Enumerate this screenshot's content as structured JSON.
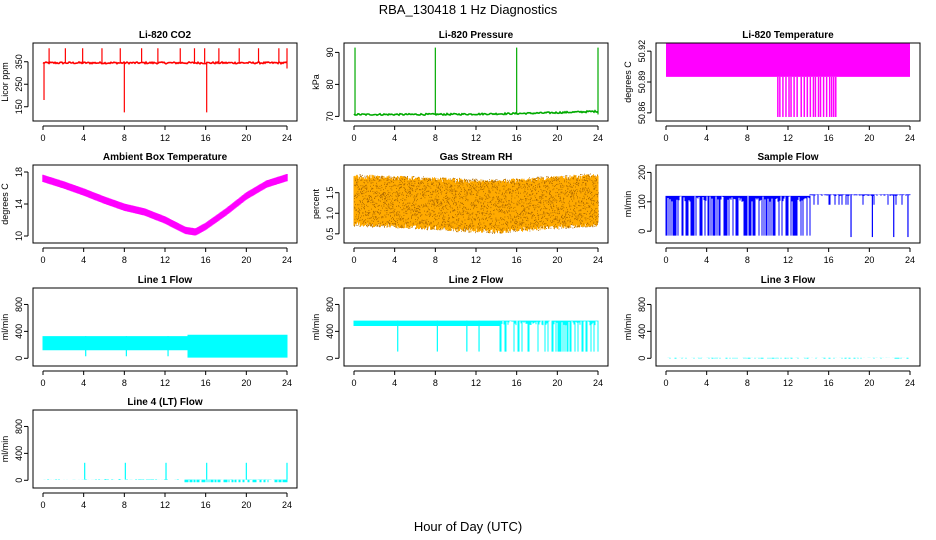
{
  "figure": {
    "title": "RBA_130418  1 Hz Diagnostics",
    "xlabel": "Hour of Day (UTC)"
  },
  "chart_data": [
    {
      "type": "line",
      "title": "Li-820 CO2",
      "ylabel": "Licor ppm",
      "xlim": [
        0,
        24
      ],
      "ylim": [
        100,
        420
      ],
      "xticks": [
        "0",
        "4",
        "8",
        "12",
        "16",
        "20",
        "24"
      ],
      "yticks": [
        {
          "v": 150,
          "label": "150"
        },
        {
          "v": 250,
          "label": "250"
        },
        {
          "v": 350,
          "label": "350"
        }
      ],
      "color": "#ff0000",
      "series": [
        {
          "name": "CO2",
          "baseline": 345,
          "noise": 4,
          "band": 0,
          "spikes_up": [
            0.6,
            2.2,
            3.9,
            5.8,
            7.6,
            9.7,
            11.3,
            13.5,
            14.9,
            15.9,
            17.3,
            19.3,
            21.2,
            23.2,
            24
          ],
          "spike_up_value": 410,
          "spikes_down": [
            {
              "x": 0.1,
              "y": 180
            },
            {
              "x": 8.0,
              "y": 125
            },
            {
              "x": 16.1,
              "y": 125
            },
            {
              "x": 24,
              "y": 320
            }
          ]
        }
      ]
    },
    {
      "type": "line",
      "title": "Li-820 Pressure",
      "ylabel": "kPa",
      "xlim": [
        0,
        24
      ],
      "ylim": [
        69.5,
        92
      ],
      "xticks": [
        "0",
        "4",
        "8",
        "12",
        "16",
        "20",
        "24"
      ],
      "yticks": [
        {
          "v": 70,
          "label": "70"
        },
        {
          "v": 80,
          "label": "80"
        },
        {
          "v": 90,
          "label": "90"
        }
      ],
      "color": "#00aa00",
      "series": [
        {
          "name": "Pressure",
          "baseline": 70.6,
          "baseline_end": 71.6,
          "noise": 0.25,
          "band": 0,
          "spikes_up": [
            0.1,
            8.0,
            16.0,
            24.0
          ],
          "spike_up_value": 91.5,
          "spikes_down": []
        }
      ]
    },
    {
      "type": "area",
      "title": "Li-820 Temperature",
      "ylabel": "degrees C",
      "xlim": [
        0,
        24
      ],
      "ylim": [
        50.855,
        50.925
      ],
      "xticks": [
        "0",
        "4",
        "8",
        "12",
        "16",
        "20",
        "24"
      ],
      "yticks": [
        {
          "v": 50.86,
          "label": "50.86"
        },
        {
          "v": 50.89,
          "label": "50.89"
        },
        {
          "v": 50.92,
          "label": "50.92"
        }
      ],
      "color": "#ff00ff",
      "series": [
        {
          "name": "Temperature",
          "band_low": 50.895,
          "band_high": 50.928,
          "dips": [
            11.0,
            11.2,
            11.5,
            11.8,
            12.1,
            12.3,
            12.6,
            12.9,
            13.3,
            13.6,
            13.9,
            14.2,
            14.5,
            14.7,
            15.0,
            15.2,
            15.5,
            15.8,
            16.1,
            16.3,
            16.5,
            16.7
          ],
          "dip_value": 50.856
        }
      ]
    },
    {
      "type": "line",
      "title": "Ambient Box Temperature",
      "ylabel": "degrees C",
      "xlim": [
        0,
        24
      ],
      "ylim": [
        9.5,
        18.5
      ],
      "xticks": [
        "0",
        "4",
        "8",
        "12",
        "16",
        "20",
        "24"
      ],
      "yticks": [
        {
          "v": 10,
          "label": "10"
        },
        {
          "v": 14,
          "label": "14"
        },
        {
          "v": 18,
          "label": "18"
        }
      ],
      "color": "#ff00ff",
      "series": [
        {
          "name": "Box temperature",
          "band": 0.9,
          "x": [
            0,
            2,
            4,
            6,
            8,
            10,
            12,
            14,
            15,
            16,
            18,
            20,
            22,
            24
          ],
          "y": [
            17.2,
            16.4,
            15.5,
            14.5,
            13.6,
            13.0,
            12.0,
            10.7,
            10.5,
            11.2,
            13.0,
            15.0,
            16.5,
            17.3
          ]
        }
      ]
    },
    {
      "type": "scatter",
      "title": "Gas Stream RH",
      "ylabel": "percent",
      "xlim": [
        0,
        24
      ],
      "ylim": [
        0.35,
        2.1
      ],
      "xticks": [
        "0",
        "4",
        "8",
        "12",
        "16",
        "20",
        "24"
      ],
      "yticks": [
        {
          "v": 0.5,
          "label": "0.5"
        },
        {
          "v": 1.0,
          "label": "1.0"
        },
        {
          "v": 1.5,
          "label": "1.5"
        }
      ],
      "color": "#ffaa00",
      "color2": "#aa6600",
      "series": [
        {
          "name": "RH",
          "upper": {
            "x": [
              0,
              6,
              10,
              14,
              18,
              24
            ],
            "y": [
              1.95,
              1.9,
              1.85,
              1.82,
              1.88,
              1.97
            ]
          },
          "lower": {
            "x": [
              0,
              6,
              10,
              14,
              18,
              24
            ],
            "y": [
              0.68,
              0.62,
              0.55,
              0.5,
              0.58,
              0.68
            ]
          }
        }
      ]
    },
    {
      "type": "line",
      "title": "Sample Flow",
      "ylabel": "ml/min",
      "xlim": [
        0,
        24
      ],
      "ylim": [
        -30,
        215
      ],
      "xticks": [
        "0",
        "4",
        "8",
        "12",
        "16",
        "20",
        "24"
      ],
      "yticks": [
        {
          "v": 0,
          "label": "0"
        },
        {
          "v": 100,
          "label": "100"
        },
        {
          "v": 200,
          "label": "200"
        }
      ],
      "color": "#0000ff",
      "series": [
        {
          "name": "Sample flow",
          "segments": [
            {
              "x0": 0,
              "x1": 14.2,
              "high": 120,
              "low": -15,
              "dense": 0.55
            },
            {
              "x0": 14.2,
              "x1": 24,
              "high": 125,
              "low": 90,
              "dense": 0.1
            }
          ],
          "spikes_down": [
            18.2,
            20.3,
            22.4,
            23.8
          ],
          "spike_down_value": -20
        }
      ]
    },
    {
      "type": "line",
      "title": "Line 1 Flow",
      "ylabel": "ml/min",
      "xlim": [
        0,
        24
      ],
      "ylim": [
        -70,
        1000
      ],
      "xticks": [
        "0",
        "4",
        "8",
        "12",
        "16",
        "20",
        "24"
      ],
      "yticks": [
        {
          "v": 0,
          "label": "0"
        },
        {
          "v": 400,
          "label": "400"
        },
        {
          "v": 800,
          "label": "800"
        }
      ],
      "color": "#00ffff",
      "series": [
        {
          "name": "Line 1 flow",
          "segments": [
            {
              "x0": 0,
              "x1": 14.3,
              "high": 330,
              "low": 120,
              "dense": 1.0
            },
            {
              "x0": 14.3,
              "x1": 24,
              "high": 350,
              "low": 10,
              "dense": 1.0
            }
          ],
          "spikes_down": [
            4.2,
            8.2,
            12.3
          ],
          "spike_down_value": 30
        }
      ]
    },
    {
      "type": "line",
      "title": "Line 2 Flow",
      "ylabel": "ml/min",
      "xlim": [
        0,
        24
      ],
      "ylim": [
        -70,
        1000
      ],
      "xticks": [
        "0",
        "4",
        "8",
        "12",
        "16",
        "20",
        "24"
      ],
      "yticks": [
        {
          "v": 0,
          "label": "0"
        },
        {
          "v": 400,
          "label": "400"
        },
        {
          "v": 800,
          "label": "800"
        }
      ],
      "color": "#00ffff",
      "series": [
        {
          "name": "Line 2 flow",
          "segments": [
            {
              "x0": 0,
              "x1": 14.3,
              "high": 560,
              "low": 480,
              "dense": 1.0
            },
            {
              "x0": 14.3,
              "x1": 24,
              "high": 560,
              "low": 100,
              "dense": 0.35
            }
          ],
          "spikes_down": [
            4.3,
            8.2,
            11.1,
            12.3
          ],
          "spike_down_value": 100
        }
      ]
    },
    {
      "type": "line",
      "title": "Line 3 Flow",
      "ylabel": "ml/min",
      "xlim": [
        0,
        24
      ],
      "ylim": [
        -70,
        1000
      ],
      "xticks": [
        "0",
        "4",
        "8",
        "12",
        "16",
        "20",
        "24"
      ],
      "yticks": [
        {
          "v": 0,
          "label": "0"
        },
        {
          "v": 400,
          "label": "400"
        },
        {
          "v": 800,
          "label": "800"
        }
      ],
      "color": "#00ffff",
      "series": [
        {
          "name": "Line 3 flow",
          "segments": [
            {
              "x0": 0,
              "x1": 24,
              "high": 8,
              "low": -5,
              "dense": 0.3
            }
          ],
          "spikes_down": [],
          "spike_down_value": 0
        }
      ]
    },
    {
      "type": "line",
      "title": "Line 4 (LT) Flow",
      "ylabel": "ml/min",
      "xlim": [
        0,
        24
      ],
      "ylim": [
        -70,
        1000
      ],
      "xticks": [
        "0",
        "4",
        "8",
        "12",
        "16",
        "20",
        "24"
      ],
      "yticks": [
        {
          "v": 0,
          "label": "0"
        },
        {
          "v": 400,
          "label": "400"
        },
        {
          "v": 800,
          "label": "800"
        }
      ],
      "color": "#00ffff",
      "series": [
        {
          "name": "Line 4 flow",
          "segments": [
            {
              "x0": 0,
              "x1": 14.0,
              "high": 15,
              "low": 5,
              "dense": 0.2
            },
            {
              "x0": 14.0,
              "x1": 24,
              "high": 10,
              "low": -30,
              "dense": 0.6
            }
          ],
          "spikes_up": [
            4.1,
            8.1,
            12.1,
            16.1,
            20.0,
            24.0
          ],
          "spike_up_value": 260,
          "spikes_down": [],
          "spike_down_value": 0
        }
      ]
    }
  ]
}
